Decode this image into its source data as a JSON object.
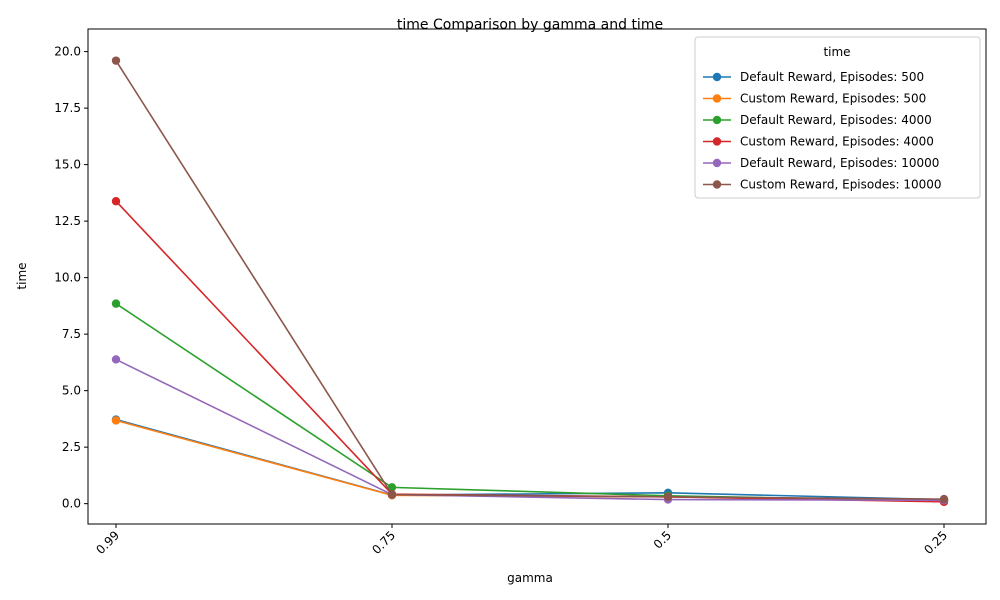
{
  "chart_data": {
    "type": "line",
    "title": "time Comparison by gamma and time",
    "xlabel": "gamma",
    "ylabel": "time",
    "categories": [
      "0.99",
      "0.75",
      "0.5",
      "0.25"
    ],
    "ylim": [
      -0.9,
      21.0
    ],
    "yticks": [
      "0.0",
      "2.5",
      "5.0",
      "7.5",
      "10.0",
      "12.5",
      "15.0",
      "17.5",
      "20.0"
    ],
    "grid": false,
    "legend": {
      "title": "time",
      "position": "top-right"
    },
    "series": [
      {
        "name": "Default Reward, Episodes: 500",
        "color": "#1f77b4",
        "values": [
          3.72,
          0.38,
          0.48,
          0.18
        ]
      },
      {
        "name": "Custom Reward, Episodes: 500",
        "color": "#ff7f0e",
        "values": [
          3.68,
          0.37,
          0.3,
          0.17
        ]
      },
      {
        "name": "Default Reward, Episodes: 4000",
        "color": "#2ca02c",
        "values": [
          8.85,
          0.72,
          0.35,
          0.12
        ]
      },
      {
        "name": "Custom Reward, Episodes: 4000",
        "color": "#d62728",
        "values": [
          13.38,
          0.42,
          0.3,
          0.08
        ]
      },
      {
        "name": "Default Reward, Episodes: 10000",
        "color": "#9467bd",
        "values": [
          6.38,
          0.4,
          0.18,
          0.15
        ]
      },
      {
        "name": "Custom Reward, Episodes: 10000",
        "color": "#8c564b",
        "values": [
          19.6,
          0.4,
          0.3,
          0.2
        ]
      }
    ]
  }
}
